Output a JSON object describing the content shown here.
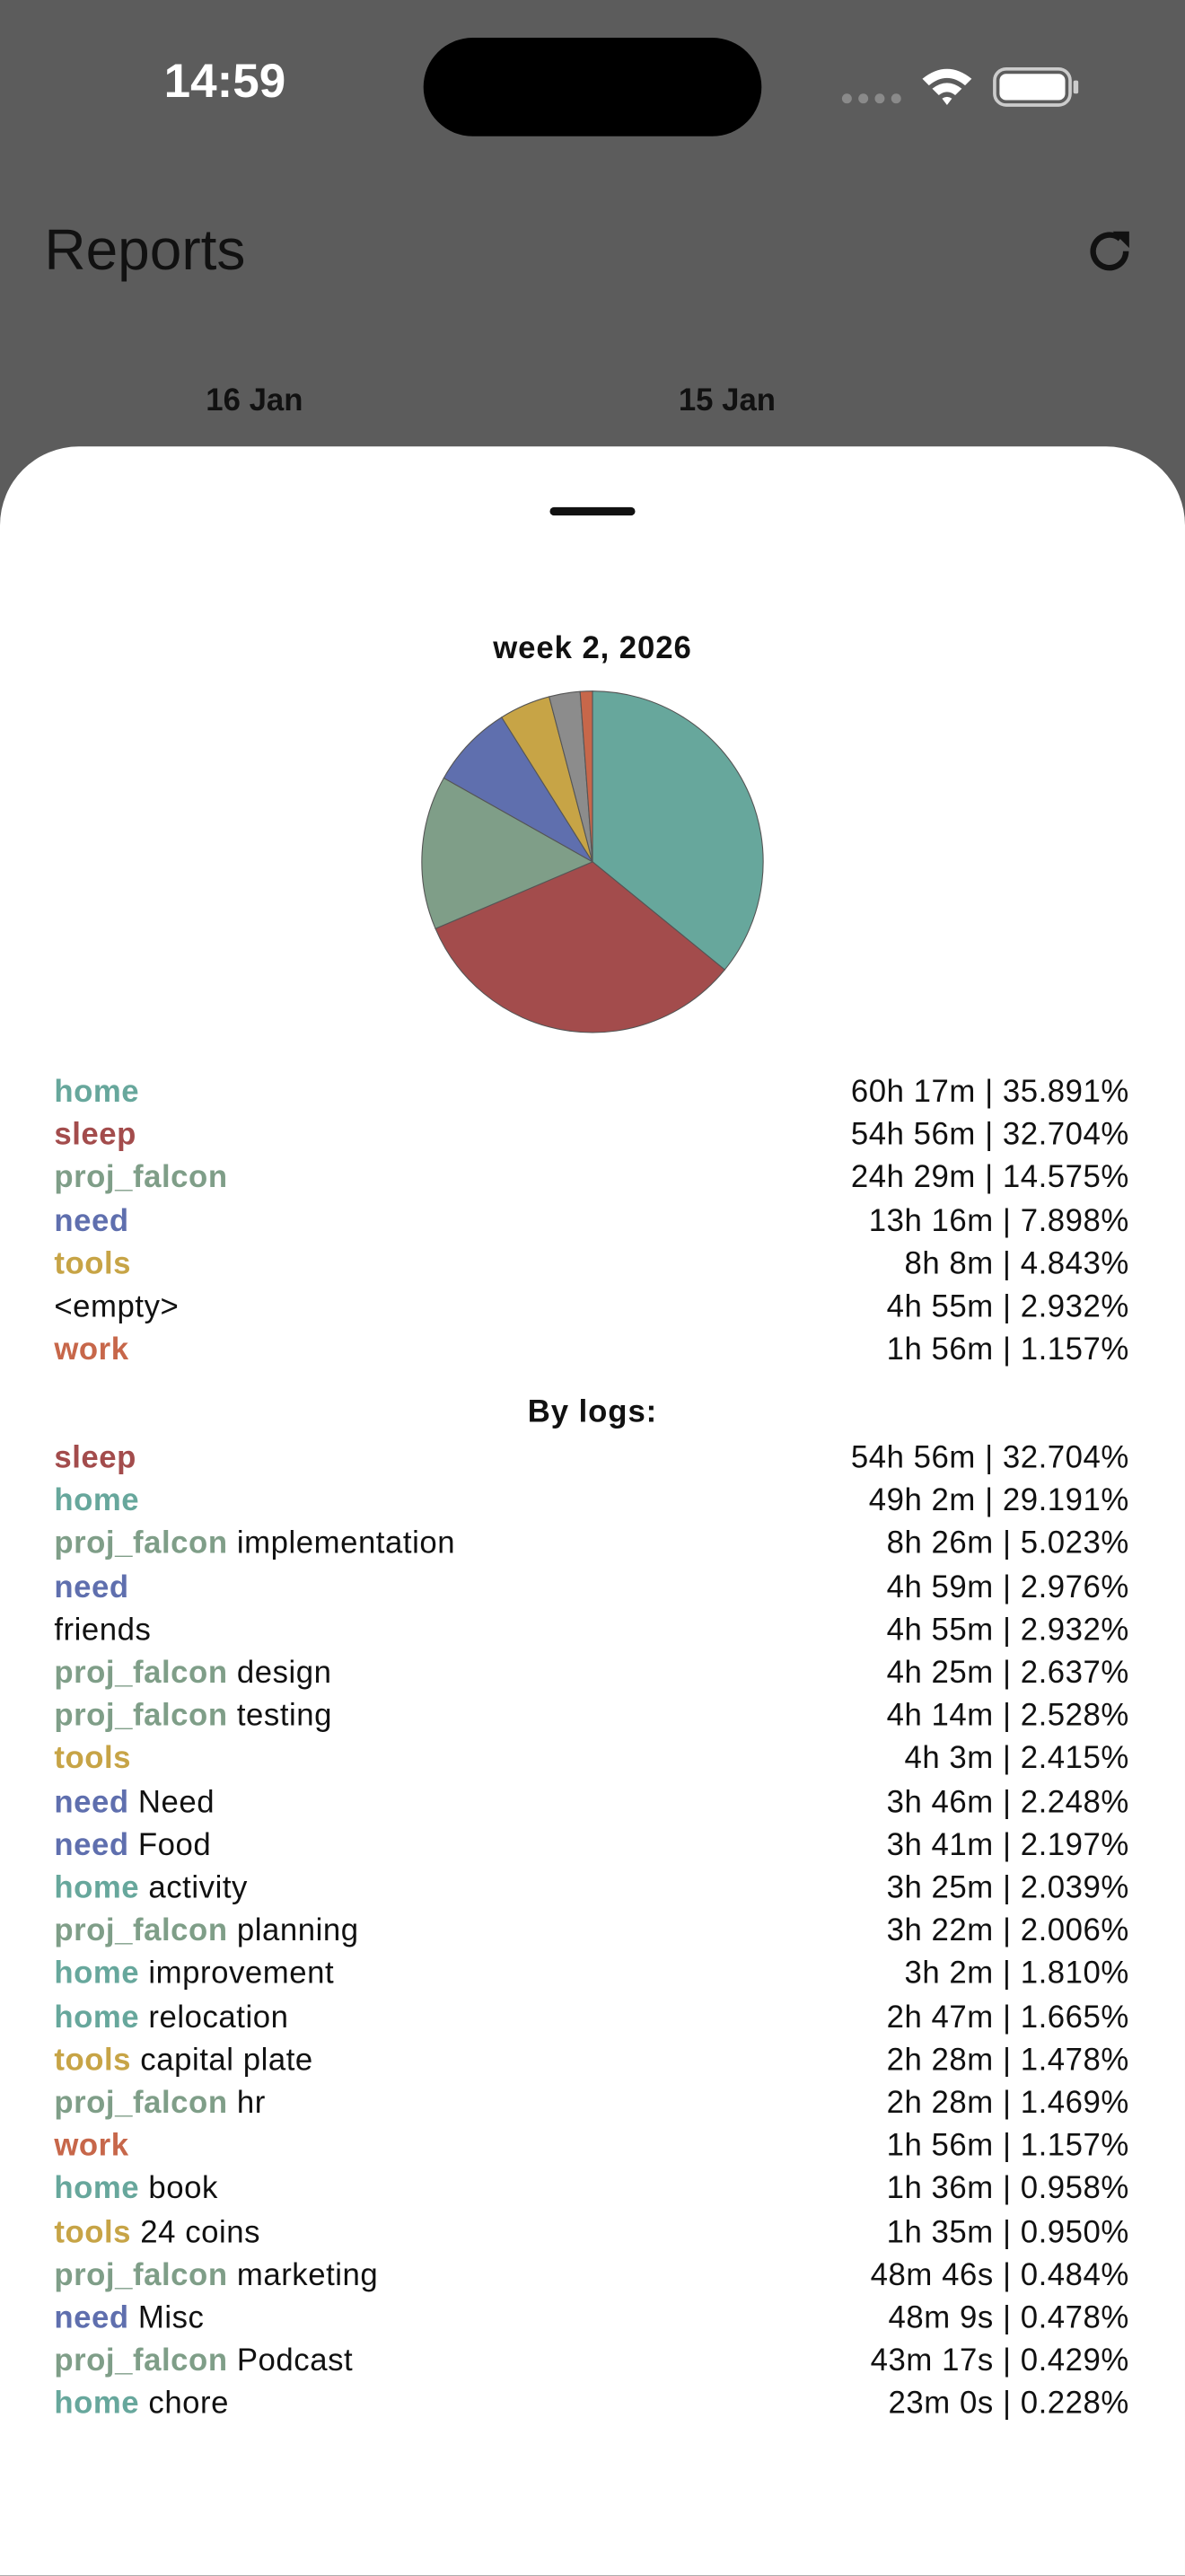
{
  "status_bar": {
    "time": "14:59"
  },
  "header": {
    "title": "Reports",
    "dates": [
      "16 Jan",
      "15 Jan"
    ]
  },
  "chart_data": {
    "type": "pie",
    "title": "week 2, 2026",
    "categories": [
      "home",
      "sleep",
      "proj_falcon",
      "need",
      "tools",
      "<empty>",
      "work"
    ],
    "values": [
      35.891,
      32.704,
      14.575,
      7.898,
      4.843,
      2.932,
      1.157
    ],
    "value_labels": [
      "60h 17m | 35.891%",
      "54h 56m | 32.704%",
      "24h 29m | 14.575%",
      "13h 16m | 7.898%",
      "8h 8m | 4.843%",
      "4h 55m | 2.932%",
      "1h 56m | 1.157%"
    ],
    "colors": [
      "#67a79c",
      "#a34c4c",
      "#7f9e88",
      "#5f6fae",
      "#c7a446",
      "#8c8c8c",
      "#c7674a"
    ],
    "label_colors": [
      "#67a79c",
      "#a34c4c",
      "#7f9e88",
      "#5f6fae",
      "#c7a446",
      "#111111",
      "#c7674a"
    ]
  },
  "by_logs": {
    "title": "By logs:",
    "rows": [
      {
        "tag": "sleep",
        "value": "54h 56m | 32.704%"
      },
      {
        "tag": "home",
        "value": "49h 2m | 29.191%"
      },
      {
        "tag": "proj_falcon",
        "detail": "implementation",
        "value": "8h 26m | 5.023%"
      },
      {
        "tag": "need",
        "value": "4h 59m | 2.976%"
      },
      {
        "detail": "friends",
        "value": "4h 55m | 2.932%"
      },
      {
        "tag": "proj_falcon",
        "detail": "design",
        "value": "4h 25m | 2.637%"
      },
      {
        "tag": "proj_falcon",
        "detail": "testing",
        "value": "4h 14m | 2.528%"
      },
      {
        "tag": "tools",
        "value": "4h 3m | 2.415%"
      },
      {
        "tag": "need",
        "detail": "Need",
        "value": "3h 46m | 2.248%"
      },
      {
        "tag": "need",
        "detail": "Food",
        "value": "3h 41m | 2.197%"
      },
      {
        "tag": "home",
        "detail": "activity",
        "value": "3h 25m | 2.039%"
      },
      {
        "tag": "proj_falcon",
        "detail": "planning",
        "value": "3h 22m | 2.006%"
      },
      {
        "tag": "home",
        "detail": "improvement",
        "value": "3h 2m | 1.810%"
      },
      {
        "tag": "home",
        "detail": "relocation",
        "value": "2h 47m | 1.665%"
      },
      {
        "tag": "tools",
        "detail": "capital plate",
        "value": "2h 28m | 1.478%"
      },
      {
        "tag": "proj_falcon",
        "detail": "hr",
        "value": "2h 28m | 1.469%"
      },
      {
        "tag": "work",
        "value": "1h 56m | 1.157%"
      },
      {
        "tag": "home",
        "detail": "book",
        "value": "1h 36m | 0.958%"
      },
      {
        "tag": "tools",
        "detail": "24 coins",
        "value": "1h 35m | 0.950%"
      },
      {
        "tag": "proj_falcon",
        "detail": "marketing",
        "value": "48m 46s | 0.484%"
      },
      {
        "tag": "need",
        "detail": "Misc",
        "value": "48m 9s | 0.478%"
      },
      {
        "tag": "proj_falcon",
        "detail": "Podcast",
        "value": "43m 17s | 0.429%"
      },
      {
        "tag": "home",
        "detail": "chore",
        "value": "23m 0s | 0.228%"
      }
    ]
  }
}
